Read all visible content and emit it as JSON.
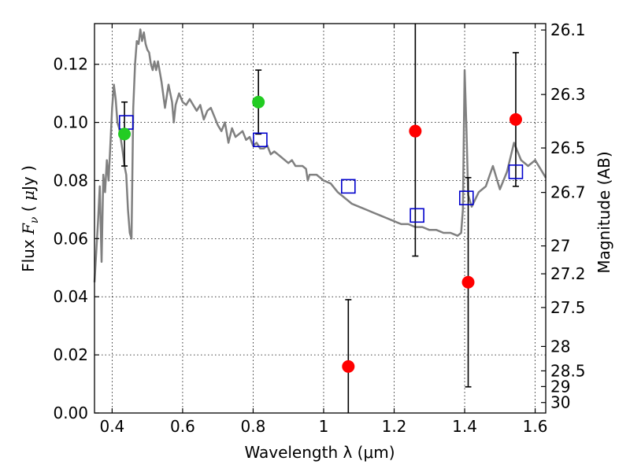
{
  "chart_data": {
    "type": "scatter",
    "title": "",
    "xlabel": "Wavelength  λ (μm)",
    "ylabel": "Flux  F_ν  ( μJy )",
    "ylabel_parts": {
      "pre": "Flux  ",
      "sym": "F",
      "sub": "ν",
      "paren_open": "  (  ",
      "unit": "μ",
      "unit_rest": "Jy )"
    },
    "y2label": "Magnitude (AB)",
    "xlim": [
      0.35,
      1.63
    ],
    "ylim": [
      0.0,
      0.134
    ],
    "grid": true,
    "x_ticks": [
      0.4,
      0.6,
      0.8,
      1.0,
      1.2,
      1.4,
      1.6
    ],
    "x_tick_labels": [
      "0.4",
      "0.6",
      "0.8",
      "1",
      "1.2",
      "1.4",
      "1.6"
    ],
    "y_ticks": [
      0.0,
      0.02,
      0.04,
      0.06,
      0.08,
      0.1,
      0.12
    ],
    "y_tick_labels": [
      "0.00",
      "0.02",
      "0.04",
      "0.06",
      "0.08",
      "0.10",
      "0.12"
    ],
    "y2_ticks": [
      {
        "label": "26.1",
        "flux": 0.1318
      },
      {
        "label": "26.3",
        "flux": 0.1096
      },
      {
        "label": "26.5",
        "flux": 0.0912
      },
      {
        "label": "26.7",
        "flux": 0.0759
      },
      {
        "label": "27",
        "flux": 0.0575
      },
      {
        "label": "27.2",
        "flux": 0.0479
      },
      {
        "label": "27.5",
        "flux": 0.0363
      },
      {
        "label": "28",
        "flux": 0.0229
      },
      {
        "label": "28.5",
        "flux": 0.0145
      },
      {
        "label": "29",
        "flux": 0.0091
      },
      {
        "label": "30",
        "flux": 0.0036
      }
    ],
    "series": [
      {
        "kind": "line",
        "color": "#808080",
        "x": [
          0.35,
          0.36,
          0.365,
          0.37,
          0.375,
          0.38,
          0.385,
          0.39,
          0.395,
          0.4,
          0.405,
          0.41,
          0.415,
          0.42,
          0.425,
          0.43,
          0.435,
          0.44,
          0.445,
          0.45,
          0.455,
          0.46,
          0.465,
          0.47,
          0.475,
          0.48,
          0.485,
          0.49,
          0.495,
          0.5,
          0.505,
          0.51,
          0.515,
          0.52,
          0.525,
          0.53,
          0.54,
          0.55,
          0.56,
          0.57,
          0.575,
          0.58,
          0.59,
          0.6,
          0.61,
          0.62,
          0.63,
          0.64,
          0.65,
          0.66,
          0.67,
          0.68,
          0.69,
          0.7,
          0.71,
          0.72,
          0.73,
          0.74,
          0.75,
          0.76,
          0.77,
          0.78,
          0.79,
          0.8,
          0.81,
          0.82,
          0.83,
          0.84,
          0.85,
          0.86,
          0.87,
          0.88,
          0.89,
          0.9,
          0.91,
          0.92,
          0.93,
          0.94,
          0.95,
          0.955,
          0.96,
          0.98,
          1.0,
          1.02,
          1.04,
          1.06,
          1.08,
          1.1,
          1.12,
          1.14,
          1.16,
          1.18,
          1.2,
          1.22,
          1.24,
          1.26,
          1.28,
          1.3,
          1.32,
          1.34,
          1.36,
          1.38,
          1.39,
          1.395,
          1.4,
          1.405,
          1.41,
          1.42,
          1.44,
          1.46,
          1.48,
          1.5,
          1.52,
          1.54,
          1.56,
          1.58,
          1.6,
          1.63
        ],
        "values": [
          0.045,
          0.066,
          0.078,
          0.052,
          0.082,
          0.076,
          0.087,
          0.08,
          0.092,
          0.105,
          0.113,
          0.108,
          0.1,
          0.098,
          0.094,
          0.09,
          0.085,
          0.082,
          0.07,
          0.062,
          0.06,
          0.105,
          0.12,
          0.128,
          0.127,
          0.132,
          0.128,
          0.131,
          0.127,
          0.125,
          0.124,
          0.12,
          0.118,
          0.121,
          0.118,
          0.121,
          0.114,
          0.105,
          0.113,
          0.107,
          0.1,
          0.106,
          0.11,
          0.107,
          0.106,
          0.108,
          0.106,
          0.104,
          0.106,
          0.101,
          0.104,
          0.105,
          0.102,
          0.099,
          0.097,
          0.1,
          0.093,
          0.098,
          0.095,
          0.096,
          0.097,
          0.094,
          0.095,
          0.092,
          0.093,
          0.091,
          0.091,
          0.092,
          0.089,
          0.09,
          0.089,
          0.088,
          0.087,
          0.086,
          0.087,
          0.085,
          0.085,
          0.085,
          0.084,
          0.08,
          0.082,
          0.082,
          0.08,
          0.079,
          0.076,
          0.074,
          0.072,
          0.071,
          0.07,
          0.069,
          0.068,
          0.067,
          0.066,
          0.065,
          0.065,
          0.064,
          0.064,
          0.063,
          0.063,
          0.062,
          0.062,
          0.061,
          0.062,
          0.07,
          0.118,
          0.098,
          0.075,
          0.071,
          0.076,
          0.078,
          0.085,
          0.077,
          0.083,
          0.093,
          0.087,
          0.085,
          0.087,
          0.081
        ]
      },
      {
        "kind": "points",
        "color": "#22cc22",
        "x": [
          0.435,
          0.815
        ],
        "values": [
          0.096,
          0.107
        ],
        "err": [
          [
            0.085,
            0.107
          ],
          [
            0.096,
            0.118
          ]
        ]
      },
      {
        "kind": "points",
        "color": "#ff0000",
        "x": [
          1.07,
          1.26,
          1.41,
          1.545
        ],
        "values": [
          0.016,
          0.097,
          0.045,
          0.101
        ],
        "err": [
          [
            0.0,
            0.039
          ],
          [
            0.054,
            0.134
          ],
          [
            0.009,
            0.081
          ],
          [
            0.078,
            0.124
          ]
        ]
      },
      {
        "kind": "squares",
        "color": "#0000cc",
        "x": [
          0.44,
          0.82,
          1.07,
          1.265,
          1.405,
          1.545
        ],
        "values": [
          0.1,
          0.094,
          0.078,
          0.068,
          0.074,
          0.083
        ]
      }
    ]
  }
}
